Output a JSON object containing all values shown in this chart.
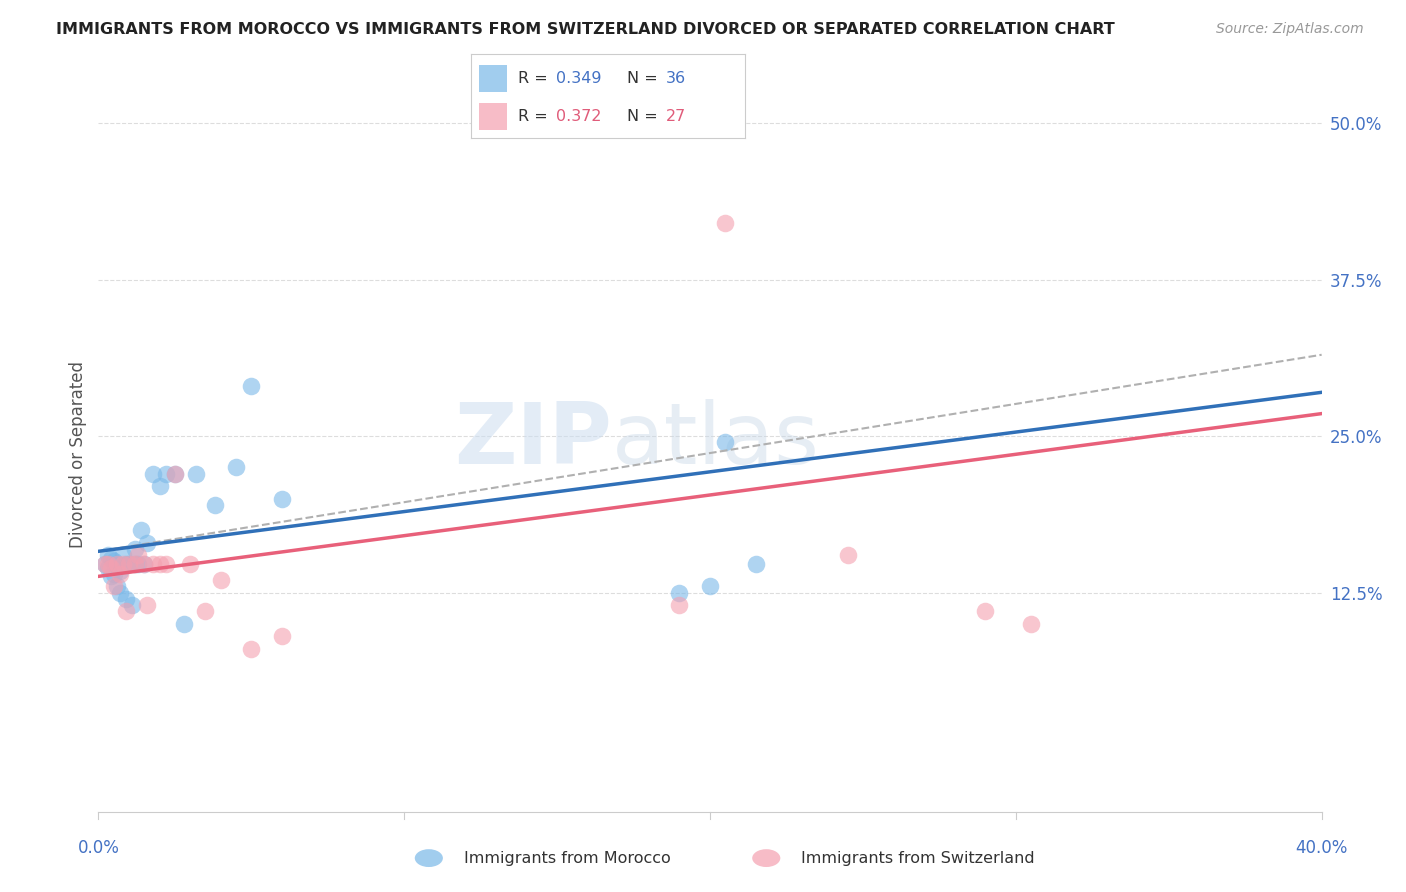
{
  "title": "IMMIGRANTS FROM MOROCCO VS IMMIGRANTS FROM SWITZERLAND DIVORCED OR SEPARATED CORRELATION CHART",
  "source": "Source: ZipAtlas.com",
  "ylabel": "Divorced or Separated",
  "legend_blue_r": "0.349",
  "legend_blue_n": "36",
  "legend_pink_r": "0.372",
  "legend_pink_n": "27",
  "legend_blue_label": "Immigrants from Morocco",
  "legend_pink_label": "Immigrants from Switzerland",
  "xlim": [
    0.0,
    0.4
  ],
  "ylim": [
    -0.05,
    0.52
  ],
  "yticks": [
    0.125,
    0.25,
    0.375,
    0.5
  ],
  "xticks": [
    0.0,
    0.1,
    0.2,
    0.3,
    0.4
  ],
  "blue_color": "#7ab8e8",
  "pink_color": "#f4a0b0",
  "blue_line_color": "#3070b8",
  "pink_line_color": "#e8607a",
  "dashed_line_color": "#b0b0b0",
  "watermark_zip": "ZIP",
  "watermark_atlas": "atlas",
  "blue_scatter_x": [
    0.002,
    0.003,
    0.003,
    0.004,
    0.004,
    0.005,
    0.005,
    0.006,
    0.006,
    0.007,
    0.007,
    0.008,
    0.009,
    0.009,
    0.01,
    0.011,
    0.012,
    0.012,
    0.013,
    0.014,
    0.015,
    0.016,
    0.018,
    0.02,
    0.022,
    0.025,
    0.028,
    0.032,
    0.038,
    0.045,
    0.05,
    0.06,
    0.19,
    0.2,
    0.205,
    0.215
  ],
  "blue_scatter_y": [
    0.148,
    0.155,
    0.145,
    0.152,
    0.138,
    0.15,
    0.14,
    0.148,
    0.13,
    0.125,
    0.142,
    0.155,
    0.148,
    0.12,
    0.148,
    0.115,
    0.148,
    0.16,
    0.148,
    0.175,
    0.148,
    0.165,
    0.22,
    0.21,
    0.22,
    0.22,
    0.1,
    0.22,
    0.195,
    0.225,
    0.29,
    0.2,
    0.125,
    0.13,
    0.245,
    0.148
  ],
  "pink_scatter_x": [
    0.002,
    0.003,
    0.004,
    0.005,
    0.006,
    0.007,
    0.008,
    0.009,
    0.01,
    0.012,
    0.013,
    0.015,
    0.016,
    0.018,
    0.02,
    0.022,
    0.025,
    0.03,
    0.035,
    0.04,
    0.05,
    0.06,
    0.19,
    0.205,
    0.245,
    0.29,
    0.305
  ],
  "pink_scatter_y": [
    0.148,
    0.148,
    0.145,
    0.13,
    0.148,
    0.14,
    0.148,
    0.11,
    0.148,
    0.148,
    0.155,
    0.148,
    0.115,
    0.148,
    0.148,
    0.148,
    0.22,
    0.148,
    0.11,
    0.135,
    0.08,
    0.09,
    0.115,
    0.42,
    0.155,
    0.11,
    0.1
  ],
  "blue_trend_x0": 0.0,
  "blue_trend_x1": 0.4,
  "blue_trend_y0": 0.158,
  "blue_trend_y1": 0.285,
  "pink_trend_x0": 0.0,
  "pink_trend_x1": 0.4,
  "pink_trend_y0": 0.138,
  "pink_trend_y1": 0.268,
  "dashed_trend_x0": 0.0,
  "dashed_trend_x1": 0.4,
  "dashed_trend_y0": 0.158,
  "dashed_trend_y1": 0.315,
  "background_color": "#ffffff",
  "grid_color": "#dddddd",
  "title_fontsize": 11.5,
  "source_fontsize": 10,
  "tick_fontsize": 12,
  "ylabel_fontsize": 12
}
